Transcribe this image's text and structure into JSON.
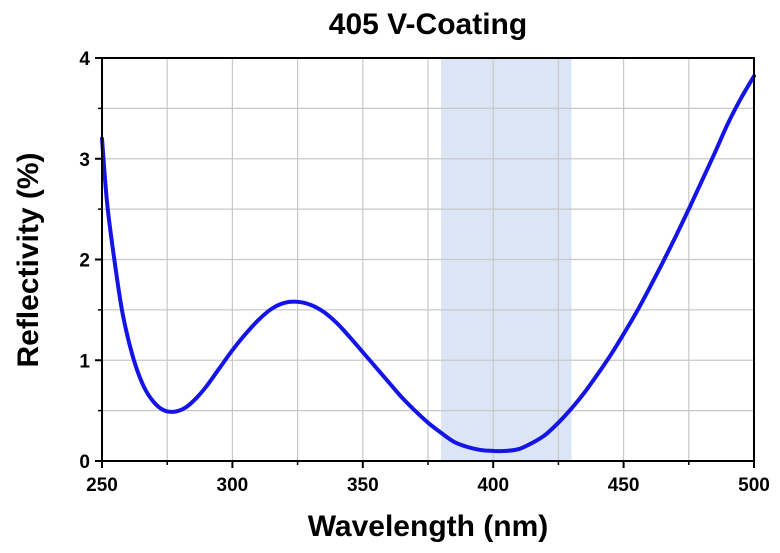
{
  "chart_data": {
    "type": "line",
    "title": "405 V-Coating",
    "xlabel": "Wavelength (nm)",
    "ylabel": "Reflectivity (%)",
    "xlim": [
      250,
      500
    ],
    "ylim": [
      0,
      4
    ],
    "xticks": [
      250,
      300,
      350,
      400,
      450,
      500
    ],
    "yticks": [
      0,
      1,
      2,
      3,
      4
    ],
    "x_tick_labels": [
      "250",
      "300",
      "350",
      "400",
      "450",
      "500"
    ],
    "y_tick_labels": [
      "0",
      "1",
      "2",
      "3",
      "4"
    ],
    "grid": true,
    "highlight_band": {
      "x_start": 380,
      "x_end": 430,
      "color": "#dbe5f5"
    },
    "series": [
      {
        "name": "Reflectivity",
        "color": "#1414e6",
        "x": [
          250,
          252,
          255,
          258,
          262,
          266,
          270,
          274,
          278,
          282,
          286,
          290,
          295,
          300,
          305,
          310,
          315,
          320,
          325,
          330,
          335,
          340,
          345,
          350,
          355,
          360,
          365,
          370,
          375,
          380,
          385,
          390,
          395,
          400,
          405,
          410,
          415,
          420,
          425,
          430,
          435,
          440,
          445,
          450,
          455,
          460,
          465,
          470,
          475,
          480,
          485,
          490,
          495,
          500
        ],
        "y": [
          3.2,
          2.55,
          1.95,
          1.45,
          1.02,
          0.74,
          0.58,
          0.5,
          0.49,
          0.53,
          0.62,
          0.74,
          0.92,
          1.1,
          1.26,
          1.4,
          1.51,
          1.57,
          1.58,
          1.55,
          1.48,
          1.37,
          1.23,
          1.08,
          0.93,
          0.78,
          0.63,
          0.5,
          0.38,
          0.28,
          0.19,
          0.14,
          0.11,
          0.1,
          0.1,
          0.12,
          0.18,
          0.26,
          0.38,
          0.52,
          0.68,
          0.86,
          1.05,
          1.26,
          1.48,
          1.72,
          1.97,
          2.23,
          2.5,
          2.78,
          3.06,
          3.35,
          3.6,
          3.82
        ]
      }
    ]
  }
}
